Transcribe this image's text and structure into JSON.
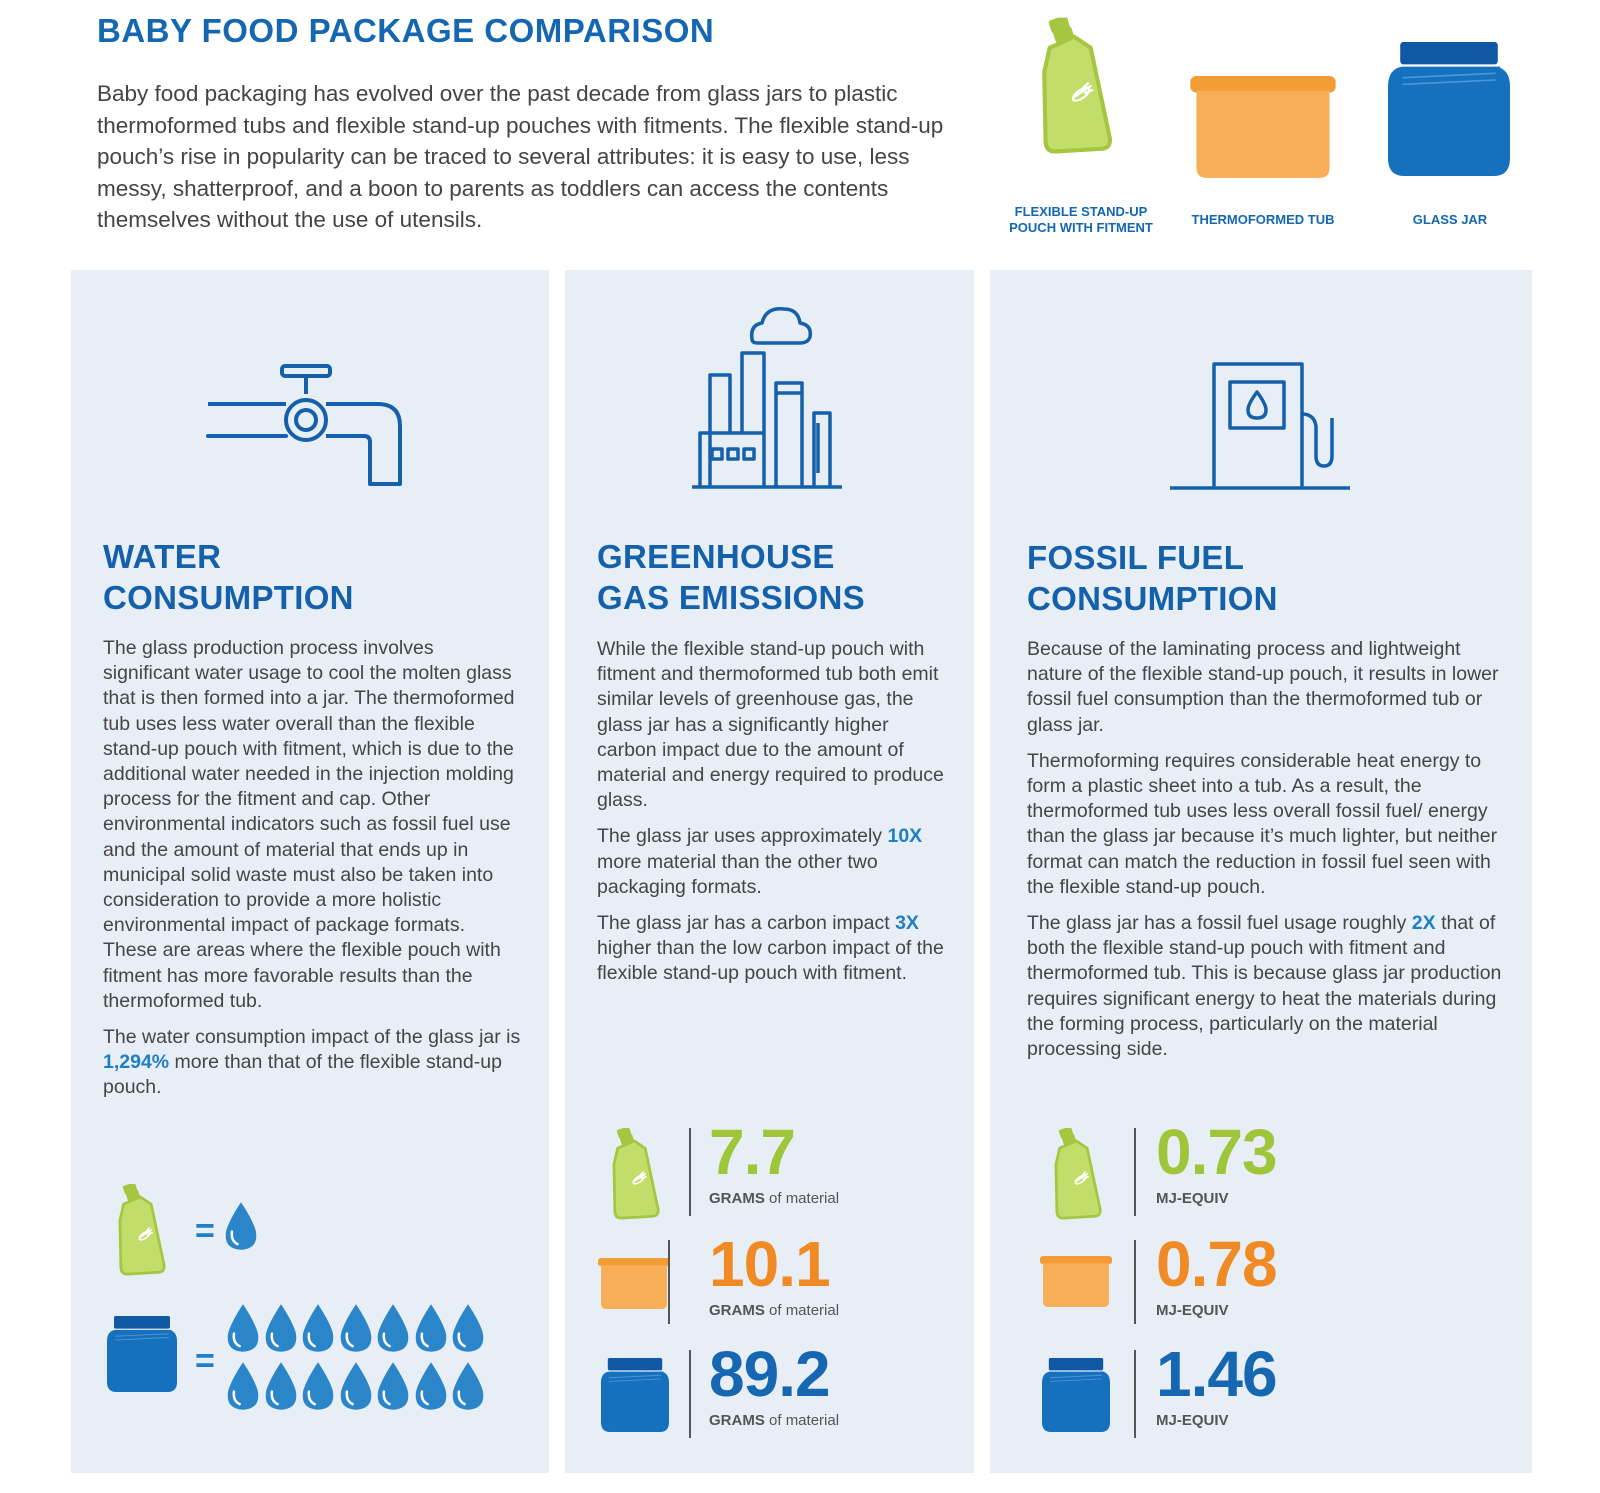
{
  "header": {
    "title": "BABY FOOD PACKAGE COMPARISON",
    "intro": "Baby food packaging has evolved over the past decade from glass jars to plastic thermoformed tubs and flexible stand-up pouches with fitments. The flexible stand-up pouch’s rise in popularity can be traced to several attributes: it is easy to use, less messy, shatterproof, and a boon to parents as toddlers can access the contents themselves without the use of utensils."
  },
  "packages": {
    "pouch_label_1": "FLEXIBLE STAND-UP",
    "pouch_label_2": "POUCH WITH FITMENT",
    "tub_label": "THERMOFORMED TUB",
    "jar_label": "GLASS JAR"
  },
  "water": {
    "heading_1": "WATER",
    "heading_2": "CONSUMPTION",
    "p1": "The glass production process involves significant water usage to cool the molten glass that is then formed into a jar. The thermoformed tub uses less water overall than the flexible stand-up pouch with fitment, which is due to the additional water needed in the injection molding process for the fitment and cap. Other environmental indicators such as fossil fuel use and the amount of material that ends up in municipal solid waste must also be taken into consideration to provide a more holistic environmental impact of package formats. These are areas where the flexible pouch with fitment has more favorable results than the thermoformed tub.",
    "p2_a": "The water consumption impact of the glass jar is ",
    "p2_hl": "1,294%",
    "p2_b": " more than that of the flexible stand-up pouch.",
    "equals": "=",
    "pouch_drops": 1,
    "jar_drops": 14
  },
  "ghg": {
    "heading_1": "GREENHOUSE",
    "heading_2": "GAS EMISSIONS",
    "p1": "While the flexible stand-up pouch with fitment and thermoformed tub both emit similar levels of greenhouse gas, the glass jar has a significantly higher carbon impact due to the amount of material and energy required to produce glass.",
    "p2_a": "The glass jar uses approximately ",
    "p2_hl": "10X",
    "p2_b": " more material than the other two packaging formats.",
    "p3_a": "The glass jar has a carbon impact ",
    "p3_hl": "3X",
    "p3_b": " higher than the low carbon impact of the flexible stand-up pouch with fitment.",
    "stats": [
      {
        "value": "7.7",
        "unit_bold": "GRAMS",
        "unit_rest": " of material"
      },
      {
        "value": "10.1",
        "unit_bold": "GRAMS",
        "unit_rest": " of material"
      },
      {
        "value": "89.2",
        "unit_bold": "GRAMS",
        "unit_rest": " of material"
      }
    ]
  },
  "fossil": {
    "heading_1": "FOSSIL FUEL",
    "heading_2": "CONSUMPTION",
    "p1": "Because of the laminating process and lightweight nature of the flexible stand-up pouch, it results in lower fossil fuel consumption than the thermoformed tub or glass jar.",
    "p2": "Thermoforming requires considerable heat energy to form a plastic sheet into a tub. As a result, the thermoformed tub uses less overall fossil fuel/ energy than the glass jar because it’s much lighter, but neither format can match the reduction in fossil fuel seen with the flexible stand-up pouch.",
    "p3_a": "The glass jar has a fossil fuel usage roughly ",
    "p3_hl": "2X",
    "p3_b": " that of both the flexible stand-up pouch with fitment and thermoformed tub. This is because glass jar production requires significant energy to heat the materials during the forming process, particularly on the material processing side.",
    "stats": [
      {
        "value": "0.73",
        "unit": "MJ-EQUIV"
      },
      {
        "value": "0.78",
        "unit": "MJ-EQUIV"
      },
      {
        "value": "1.46",
        "unit": "MJ-EQUIV"
      }
    ]
  },
  "colors": {
    "pouch": "#b5d55c",
    "tub": "#f6a94f",
    "jar": "#1570bd",
    "heading": "#1460aa",
    "panel": "#e7eef6",
    "drop": "#2a86c8"
  }
}
